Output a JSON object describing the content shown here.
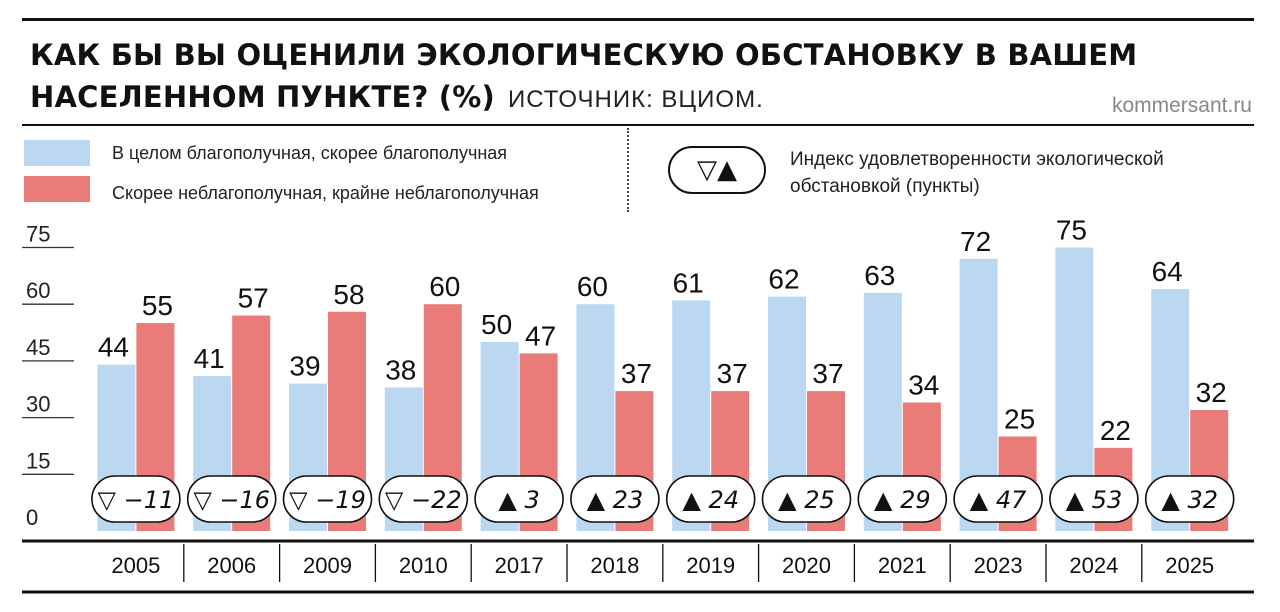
{
  "title": {
    "line1": "КАК БЫ ВЫ ОЦЕНИЛИ ЭКОЛОГИЧЕСКУЮ ОБСТАНОВКУ В ВАШЕМ",
    "line2": "НАСЕЛЕННОМ ПУНКТЕ? (%)",
    "source": "ИСТОЧНИК: ВЦИОМ.",
    "brand": "kommersant.ru"
  },
  "legend": {
    "good_label": "В целом благополучная, скорее благополучная",
    "bad_label": "Скорее неблагополучная, крайне неблагополучная",
    "index_symbol": "▽▲",
    "index_label_line1": "Индекс удовлетворенности экологической",
    "index_label_line2": "обстановкой (пункты)"
  },
  "colors": {
    "good": "#bcd7f0",
    "bad": "#e97b79",
    "text": "#111111"
  },
  "chart_data": {
    "type": "bar",
    "title": "КАК БЫ ВЫ ОЦЕНИЛИ ЭКОЛОГИЧЕСКУЮ ОБСТАНОВКУ В ВАШЕМ НАСЕЛЕННОМ ПУНКТЕ? (%)",
    "categories": [
      "2005",
      "2006",
      "2009",
      "2010",
      "2017",
      "2018",
      "2019",
      "2020",
      "2021",
      "2023",
      "2024",
      "2025"
    ],
    "series": [
      {
        "name": "В целом благополучная, скорее благополучная",
        "values": [
          44,
          41,
          39,
          38,
          50,
          60,
          61,
          62,
          63,
          72,
          75,
          64
        ]
      },
      {
        "name": "Скорее неблагополучная, крайне неблагополучная",
        "values": [
          55,
          57,
          58,
          60,
          47,
          37,
          37,
          37,
          34,
          25,
          22,
          32
        ]
      }
    ],
    "index": {
      "name": "Индекс удовлетворенности экологической обстановкой (пункты)",
      "values": [
        -11,
        -16,
        -19,
        -22,
        3,
        23,
        24,
        25,
        29,
        47,
        53,
        32
      ]
    },
    "yticks": [
      0,
      15,
      30,
      45,
      60,
      75
    ],
    "ylim": [
      0,
      75
    ],
    "grid": false,
    "legend_position": "top"
  }
}
